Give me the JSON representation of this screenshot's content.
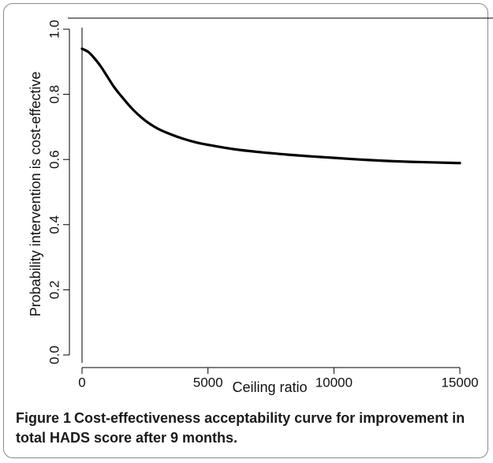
{
  "caption": {
    "label": "Figure 1",
    "text": "Cost-effectiveness acceptability curve for improvement in total HADS score after 9 months."
  },
  "chart_data": {
    "type": "line",
    "title": "",
    "xlabel": "Ceiling ratio",
    "ylabel": "Probability intervention is cost-effective",
    "xlim": [
      0,
      15000
    ],
    "ylim": [
      0.0,
      1.0
    ],
    "x_ticks": [
      0,
      5000,
      10000,
      15000
    ],
    "x_tick_labels": [
      "0",
      "5000",
      "10000",
      "15000"
    ],
    "y_ticks": [
      0.0,
      0.2,
      0.4,
      0.6,
      0.8,
      1.0
    ],
    "y_tick_labels": [
      "0.0",
      "0.2",
      "0.4",
      "0.6",
      "0.8",
      "1.0"
    ],
    "grid": false,
    "legend": "none",
    "series": [
      {
        "color": "#000000",
        "x": [
          0,
          250,
          500,
          750,
          1000,
          1250,
          1500,
          2000,
          2500,
          3000,
          3500,
          4000,
          4500,
          5000,
          6000,
          7000,
          8000,
          9000,
          10000,
          11000,
          12000,
          13000,
          14000,
          15000
        ],
        "y": [
          0.94,
          0.93,
          0.91,
          0.885,
          0.855,
          0.825,
          0.8,
          0.755,
          0.72,
          0.695,
          0.678,
          0.664,
          0.653,
          0.645,
          0.632,
          0.623,
          0.616,
          0.61,
          0.605,
          0.6,
          0.596,
          0.593,
          0.591,
          0.589
        ]
      }
    ]
  }
}
